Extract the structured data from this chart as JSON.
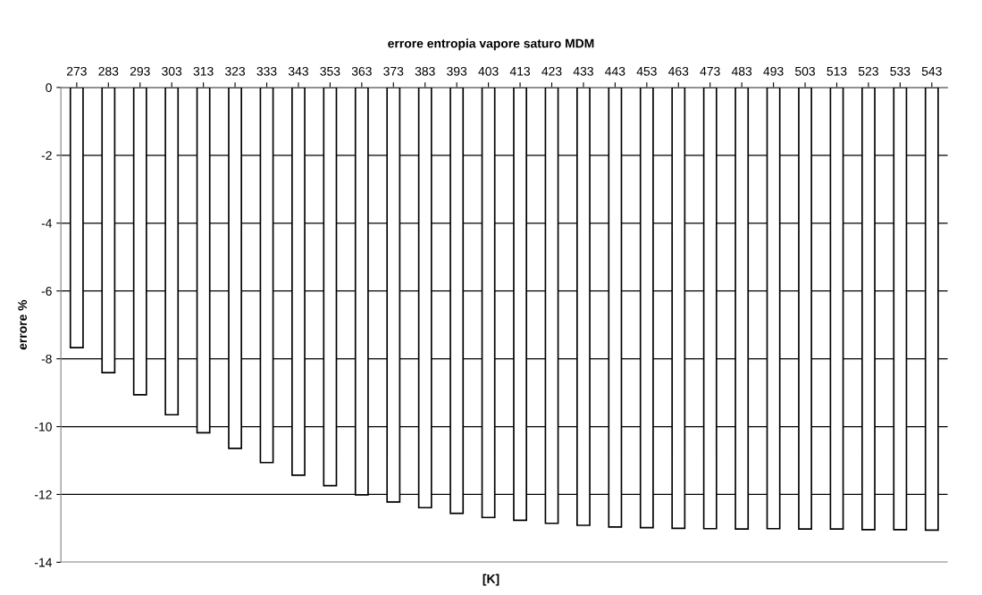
{
  "chart_data": {
    "type": "bar",
    "title": "errore entropia vapore saturo MDM",
    "xlabel": "[K]",
    "ylabel": "errore %",
    "categories": [
      "273",
      "283",
      "293",
      "303",
      "313",
      "323",
      "333",
      "343",
      "353",
      "363",
      "373",
      "383",
      "393",
      "403",
      "413",
      "423",
      "433",
      "443",
      "453",
      "463",
      "473",
      "483",
      "493",
      "503",
      "513",
      "523",
      "533",
      "543"
    ],
    "values": [
      -7.67,
      -8.41,
      -9.06,
      -9.65,
      -10.18,
      -10.64,
      -11.06,
      -11.43,
      -11.74,
      -12.01,
      -12.22,
      -12.39,
      -12.56,
      -12.68,
      -12.76,
      -12.85,
      -12.91,
      -12.96,
      -12.98,
      -13.0,
      -13.01,
      -13.02,
      -13.01,
      -13.02,
      -13.02,
      -13.04,
      -13.04,
      -13.05
    ],
    "color": "#ffffff",
    "ylim": [
      -14,
      0
    ],
    "yticks": [
      -14,
      -12,
      -10,
      -8,
      -6,
      -4,
      -2,
      0
    ],
    "grid": "y",
    "legend": false
  }
}
